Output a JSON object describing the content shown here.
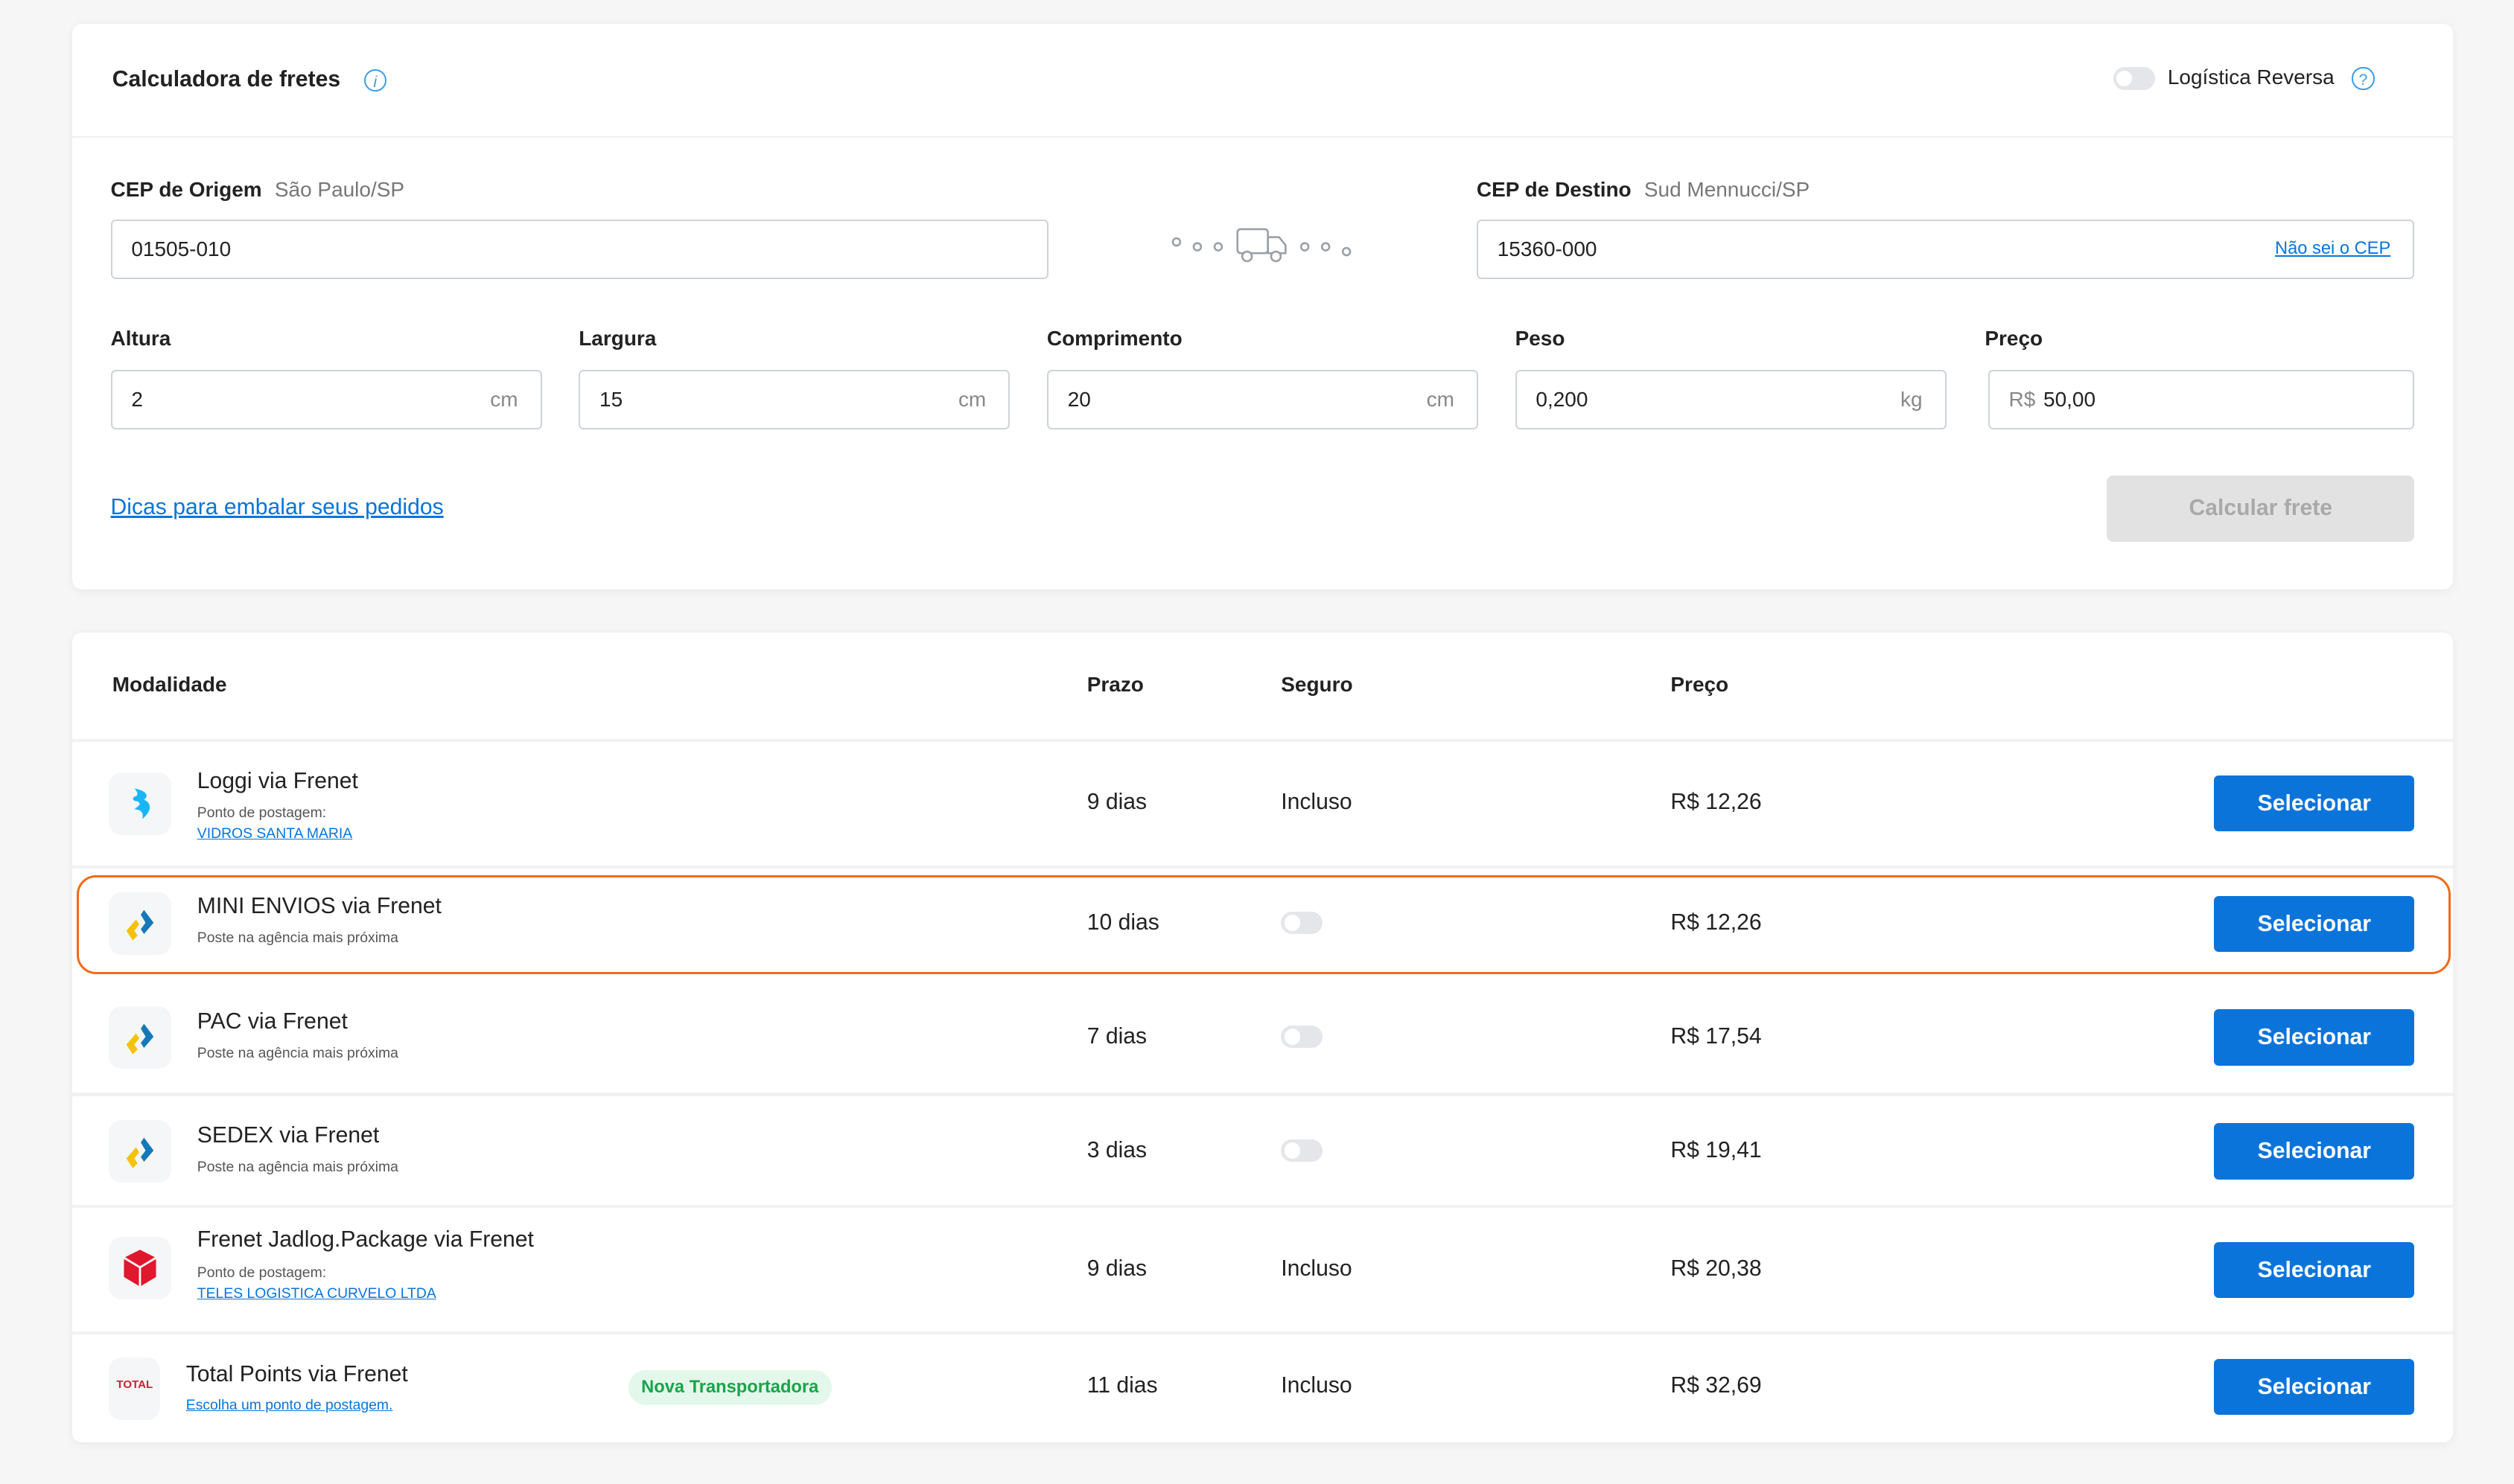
{
  "calculator": {
    "title": "Calculadora de fretes",
    "reverse_logistics_label": "Logística Reversa",
    "reverse_logistics_on": false,
    "origin": {
      "label": "CEP de Origem",
      "city": "São Paulo/SP",
      "value": "01505-010"
    },
    "destination": {
      "label": "CEP de Destino",
      "city": "Sud Mennucci/SP",
      "value": "15360-000",
      "help_link": "Não sei o CEP"
    },
    "fields": [
      {
        "label": "Altura",
        "value": "2",
        "unit": "cm"
      },
      {
        "label": "Largura",
        "value": "15",
        "unit": "cm"
      },
      {
        "label": "Comprimento",
        "value": "20",
        "unit": "cm"
      },
      {
        "label": "Peso",
        "value": "0,200",
        "unit": "kg"
      },
      {
        "label": "Preço",
        "prefix": "R$",
        "value": "50,00"
      }
    ],
    "tips_link": "Dicas para embalar seus pedidos",
    "submit_label": "Calcular frete"
  },
  "results": {
    "headers": {
      "modality": "Modalidade",
      "deadline": "Prazo",
      "insurance": "Seguro",
      "price": "Preço"
    },
    "select_label": "Selecionar",
    "rows": [
      {
        "name": "Loggi via Frenet",
        "note": "Ponto de postagem:",
        "link": "VIDROS SANTA MARIA",
        "deadline": "9 dias",
        "insurance": "Incluso",
        "price": "R$ 12,26"
      },
      {
        "name": "MINI ENVIOS via Frenet",
        "note": "Poste na agência mais próxima",
        "deadline": "10 dias",
        "insurance_toggle": false,
        "price": "R$ 12,26",
        "highlighted": true
      },
      {
        "name": "PAC via Frenet",
        "note": "Poste na agência mais próxima",
        "deadline": "7 dias",
        "insurance_toggle": false,
        "price": "R$ 17,54"
      },
      {
        "name": "SEDEX via Frenet",
        "note": "Poste na agência mais próxima",
        "deadline": "3 dias",
        "insurance_toggle": false,
        "price": "R$ 19,41"
      },
      {
        "name": "Frenet Jadlog.Package via Frenet",
        "note": "Ponto de postagem:",
        "link": "TELES LOGISTICA CURVELO LTDA",
        "deadline": "9 dias",
        "insurance": "Incluso",
        "price": "R$ 20,38"
      },
      {
        "name": "Total Points via Frenet",
        "link": "Escolha um ponto de postagem.",
        "badge": "Nova Transportadora",
        "logo_text": "TOTAL",
        "deadline": "11 dias",
        "insurance": "Incluso",
        "price": "R$ 32,69"
      }
    ]
  },
  "colors": {
    "primary": "#0a74da",
    "highlight": "#f26a1b",
    "badge_bg": "#e3f8ea",
    "badge_text": "#1aa34a"
  }
}
